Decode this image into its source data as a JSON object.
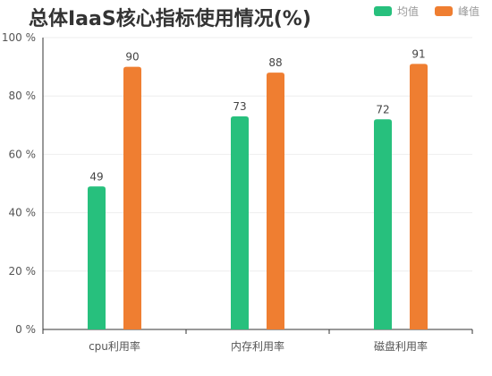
{
  "chart_data": {
    "type": "bar",
    "title": "总体IaaS核心指标使用情况(%)",
    "categories": [
      "cpu利用率",
      "内存利用率",
      "磁盘利用率"
    ],
    "series": [
      {
        "name": "均值",
        "values": [
          49,
          73,
          72
        ],
        "color": "#27c07d"
      },
      {
        "name": "峰值",
        "values": [
          90,
          88,
          91
        ],
        "color": "#ef7e31"
      }
    ],
    "ylim": [
      0,
      100
    ],
    "yticks": [
      0,
      20,
      40,
      60,
      80,
      100
    ],
    "ytick_labels": [
      "0 %",
      "20 %",
      "40 %",
      "60 %",
      "80 %",
      "100 %"
    ],
    "grid": true,
    "legend_position": "top-right"
  }
}
